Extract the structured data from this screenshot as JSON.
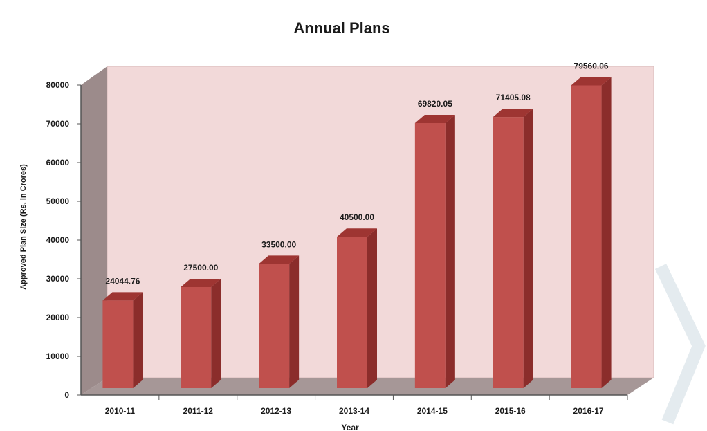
{
  "chart_data": {
    "type": "bar",
    "title": "Annual Plans",
    "xlabel": "Year",
    "ylabel": "Approved Plan Size (Rs. in Crores)",
    "categories": [
      "2010-11",
      "2011-12",
      "2012-13",
      "2013-14",
      "2014-15",
      "2015-16",
      "2016-17"
    ],
    "values": [
      24044.76,
      27500.0,
      33500.0,
      40500.0,
      69820.05,
      71405.08,
      79560.06
    ],
    "value_labels": [
      "24044.76",
      "27500.00",
      "33500.00",
      "40500.00",
      "69820.05",
      "71405.08",
      "79560.06"
    ],
    "yticks": [
      "0",
      "10000",
      "20000",
      "30000",
      "40000",
      "50000",
      "60000",
      "70000",
      "80000"
    ],
    "ylim": [
      0,
      80000
    ],
    "grid": false,
    "legend": "none",
    "colors": {
      "bar_front": "#c0504d",
      "bar_side": "#8b2d2b",
      "bar_top": "#9e3532",
      "back_wall": "#f2d9d9",
      "side_wall": "#9c8b8b",
      "floor": "#a69797",
      "watermark": "#e4ebef"
    }
  }
}
